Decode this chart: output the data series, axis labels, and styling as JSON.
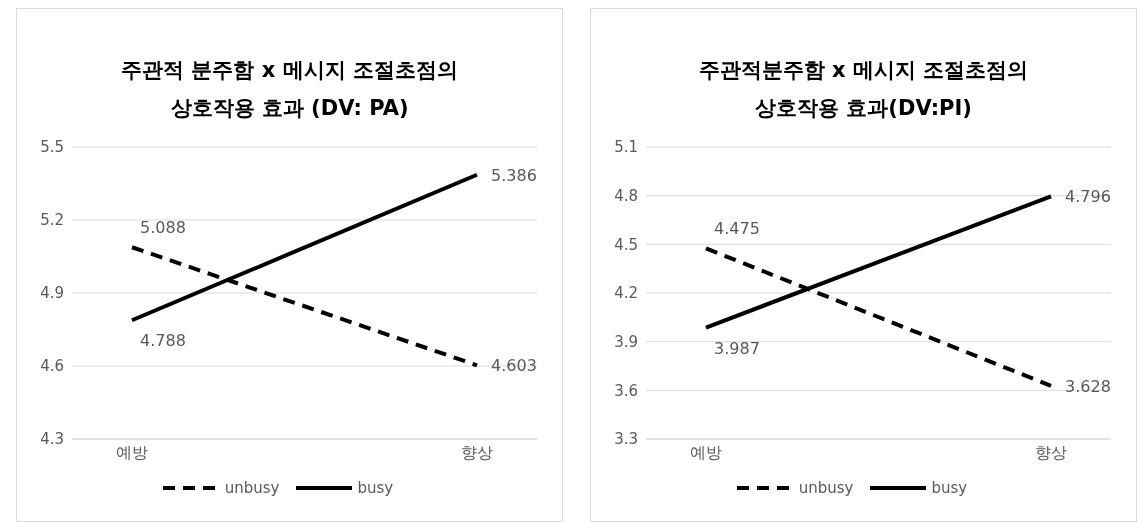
{
  "chart_data": [
    {
      "type": "line",
      "title": "주관적 분주함 x 메시지 조절초점의\n상호작용 효과 (DV: PA)",
      "categories": [
        "예방",
        "향상"
      ],
      "ylim": [
        4.3,
        5.5
      ],
      "yticks": [
        4.3,
        4.6,
        4.9,
        5.2,
        5.5
      ],
      "grid": "y",
      "legend": "bottom",
      "data_labels": true,
      "marker": "none",
      "series": [
        {
          "name": "unbusy",
          "color": "#000000",
          "line_style": "dashed",
          "values": [
            5.088,
            4.603
          ]
        },
        {
          "name": "busy",
          "color": "#000000",
          "line_style": "solid",
          "values": [
            4.788,
            5.386
          ]
        }
      ]
    },
    {
      "type": "line",
      "title": "주관적분주함 x 메시지 조절초점의\n상호작용 효과(DV:PI)",
      "categories": [
        "예방",
        "향상"
      ],
      "ylim": [
        3.3,
        5.1
      ],
      "yticks": [
        3.3,
        3.6,
        3.9,
        4.2,
        4.5,
        4.8,
        5.1
      ],
      "grid": "y",
      "legend": "bottom",
      "data_labels": true,
      "marker": "none",
      "series": [
        {
          "name": "unbusy",
          "color": "#000000",
          "line_style": "dashed",
          "values": [
            4.475,
            3.628
          ]
        },
        {
          "name": "busy",
          "color": "#000000",
          "line_style": "solid",
          "values": [
            3.987,
            4.796
          ]
        }
      ]
    }
  ]
}
